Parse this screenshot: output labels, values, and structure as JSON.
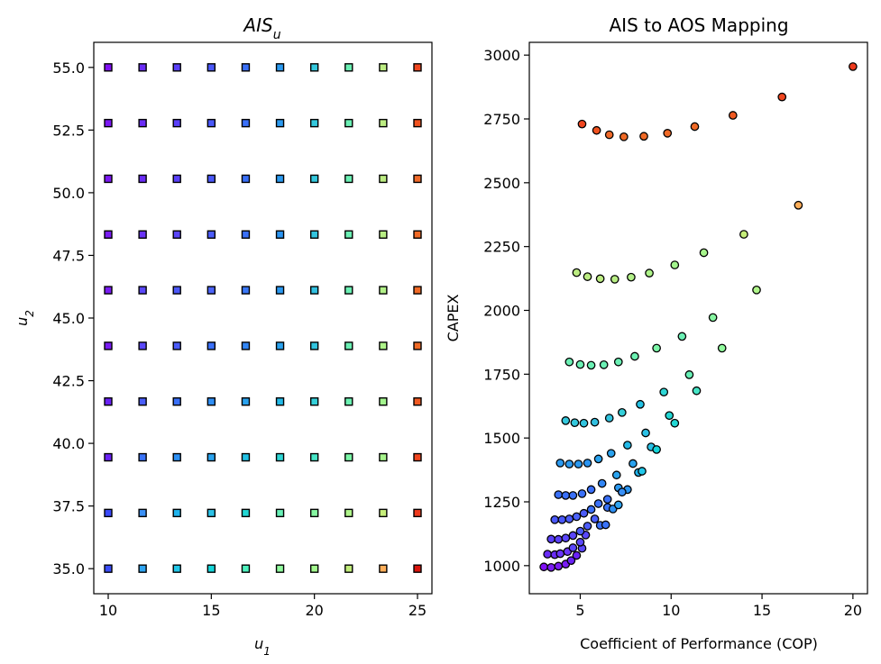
{
  "chart_data": [
    {
      "type": "scatter",
      "title": "AIS_u",
      "title_main": "AIS",
      "title_sub": "u",
      "xlabel_main": "u",
      "xlabel_sub": "1",
      "ylabel_main": "u",
      "ylabel_sub": "2",
      "xlim": [
        9.3,
        25.7
      ],
      "ylim": [
        34.0,
        56.0
      ],
      "xticks": [
        10,
        15,
        20,
        25
      ],
      "yticks": [
        35.0,
        37.5,
        40.0,
        42.5,
        45.0,
        47.5,
        50.0,
        52.5,
        55.0
      ],
      "ytick_labels": [
        "35.0",
        "37.5",
        "40.0",
        "42.5",
        "45.0",
        "47.5",
        "50.0",
        "52.5",
        "55.0"
      ],
      "marker": "square",
      "grid": false,
      "u1_values": [
        10.0,
        11.667,
        13.333,
        15.0,
        16.667,
        18.333,
        20.0,
        21.667,
        23.333,
        25.0
      ],
      "u2_values": [
        35.0,
        37.222,
        39.444,
        41.667,
        43.889,
        46.111,
        48.333,
        50.556,
        52.778,
        55.0
      ],
      "colors": [
        [
          "#3a4dfb",
          "#2fa5f3",
          "#22c7e9",
          "#15d5d9",
          "#4ef2be",
          "#90fb9d",
          "#a3f98e",
          "#c1ec7a",
          "#ffae59",
          "#d9140c"
        ],
        [
          "#3a49fb",
          "#3a90f6",
          "#1fb3ed",
          "#2bc1e6",
          "#22d6d3",
          "#67f0b6",
          "#86f5a1",
          "#aff58a",
          "#c6ee7a",
          "#ee3a1d"
        ],
        [
          "#6a22f5",
          "#3a73f8",
          "#2d90f4",
          "#2aa3ee",
          "#23c1e4",
          "#2ed6d5",
          "#46e5c6",
          "#7cf7a8",
          "#a7f48c",
          "#f0461f"
        ],
        [
          "#6a22f5",
          "#4a5efa",
          "#3a70f8",
          "#2f8ef4",
          "#2aa2ee",
          "#23b9e7",
          "#35cfd9",
          "#6cf2b2",
          "#a3f48d",
          "#f05a22"
        ],
        [
          "#7a1cf4",
          "#5a48fa",
          "#4c5cf9",
          "#3a70f8",
          "#3286f5",
          "#2aa2ee",
          "#32c4df",
          "#6bf0b4",
          "#aef489",
          "#f06a26"
        ],
        [
          "#7a1cf4",
          "#5a48fa",
          "#4c58f9",
          "#4c64f9",
          "#3a78f7",
          "#2a98f0",
          "#32c0e0",
          "#6bf0b4",
          "#b2f088",
          "#f06a26"
        ],
        [
          "#7a1cf4",
          "#6a34f7",
          "#5a46fa",
          "#4c5cf9",
          "#3a70f8",
          "#2a94f1",
          "#32c4df",
          "#6bf0b4",
          "#b8ee84",
          "#f06a26"
        ],
        [
          "#7c18f4",
          "#6a2cf6",
          "#5a40f9",
          "#4a58f9",
          "#3a70f8",
          "#2b9af0",
          "#34c8dd",
          "#6bf0b4",
          "#bcec82",
          "#f06a2a"
        ],
        [
          "#7c18f4",
          "#6a2cf6",
          "#5a40f9",
          "#4a58f9",
          "#3a70f8",
          "#2b9af0",
          "#34c8dd",
          "#6bf0b4",
          "#bcec82",
          "#f0521f"
        ],
        [
          "#8010f4",
          "#6a2cf6",
          "#5a40f9",
          "#4a58f9",
          "#3a70f8",
          "#2b9af0",
          "#34c8dd",
          "#6bf0b4",
          "#bcec82",
          "#f0461f"
        ]
      ]
    },
    {
      "type": "scatter",
      "title": "AIS to AOS Mapping",
      "xlabel": "Coefficient of Performance (COP)",
      "ylabel": "CAPEX",
      "xlim": [
        2.2,
        20.8
      ],
      "ylim": [
        890,
        3050
      ],
      "xticks": [
        5,
        10,
        15,
        20
      ],
      "yticks": [
        1000,
        1250,
        1500,
        1750,
        2000,
        2250,
        2500,
        2750,
        3000
      ],
      "marker": "circle",
      "grid": false,
      "points": [
        {
          "x": 3.0,
          "y": 995,
          "color": "#8010f4"
        },
        {
          "x": 3.4,
          "y": 993,
          "color": "#7a1cf4"
        },
        {
          "x": 3.8,
          "y": 998,
          "color": "#7a1cf4"
        },
        {
          "x": 4.2,
          "y": 1006,
          "color": "#7a1cf4"
        },
        {
          "x": 4.5,
          "y": 1020,
          "color": "#6a22f5"
        },
        {
          "x": 4.8,
          "y": 1040,
          "color": "#6a22f5"
        },
        {
          "x": 5.1,
          "y": 1068,
          "color": "#5a48fa"
        },
        {
          "x": 3.2,
          "y": 1045,
          "color": "#6a2cf6"
        },
        {
          "x": 3.6,
          "y": 1043,
          "color": "#6a2cf6"
        },
        {
          "x": 3.9,
          "y": 1047,
          "color": "#6a34f7"
        },
        {
          "x": 4.3,
          "y": 1055,
          "color": "#6a34f7"
        },
        {
          "x": 4.6,
          "y": 1070,
          "color": "#5a46fa"
        },
        {
          "x": 5.0,
          "y": 1092,
          "color": "#5a48fa"
        },
        {
          "x": 5.3,
          "y": 1120,
          "color": "#5a48fa"
        },
        {
          "x": 3.4,
          "y": 1104,
          "color": "#5a40f9"
        },
        {
          "x": 3.8,
          "y": 1103,
          "color": "#5a40f9"
        },
        {
          "x": 4.2,
          "y": 1108,
          "color": "#5a46fa"
        },
        {
          "x": 4.6,
          "y": 1118,
          "color": "#5a46fa"
        },
        {
          "x": 5.0,
          "y": 1135,
          "color": "#4c5cf9"
        },
        {
          "x": 5.4,
          "y": 1155,
          "color": "#4c5cf9"
        },
        {
          "x": 5.8,
          "y": 1183,
          "color": "#4a5efa"
        },
        {
          "x": 6.1,
          "y": 1158,
          "color": "#3a70f8"
        },
        {
          "x": 6.4,
          "y": 1160,
          "color": "#3a73f8"
        },
        {
          "x": 3.6,
          "y": 1180,
          "color": "#4a58f9"
        },
        {
          "x": 4.0,
          "y": 1180,
          "color": "#4a58f9"
        },
        {
          "x": 4.4,
          "y": 1183,
          "color": "#4c5cf9"
        },
        {
          "x": 4.8,
          "y": 1192,
          "color": "#4c64f9"
        },
        {
          "x": 5.2,
          "y": 1205,
          "color": "#4c5cf9"
        },
        {
          "x": 5.6,
          "y": 1220,
          "color": "#3a70f8"
        },
        {
          "x": 6.0,
          "y": 1243,
          "color": "#3a70f8"
        },
        {
          "x": 6.5,
          "y": 1228,
          "color": "#3a73f8"
        },
        {
          "x": 6.8,
          "y": 1222,
          "color": "#2d90f4"
        },
        {
          "x": 7.1,
          "y": 1238,
          "color": "#2fa5f3"
        },
        {
          "x": 3.8,
          "y": 1278,
          "color": "#3a70f8"
        },
        {
          "x": 4.2,
          "y": 1275,
          "color": "#3a70f8"
        },
        {
          "x": 4.6,
          "y": 1275,
          "color": "#3a70f8"
        },
        {
          "x": 5.1,
          "y": 1282,
          "color": "#3a70f8"
        },
        {
          "x": 5.6,
          "y": 1298,
          "color": "#3a70f8"
        },
        {
          "x": 6.2,
          "y": 1322,
          "color": "#3286f5"
        },
        {
          "x": 6.5,
          "y": 1260,
          "color": "#3a70f8"
        },
        {
          "x": 7.1,
          "y": 1305,
          "color": "#2a98f0"
        },
        {
          "x": 7.6,
          "y": 1298,
          "color": "#2a94f1"
        },
        {
          "x": 7.3,
          "y": 1288,
          "color": "#3a90f6"
        },
        {
          "x": 3.9,
          "y": 1402,
          "color": "#2b9af0"
        },
        {
          "x": 4.4,
          "y": 1398,
          "color": "#2b9af0"
        },
        {
          "x": 4.9,
          "y": 1398,
          "color": "#2a98f0"
        },
        {
          "x": 5.4,
          "y": 1402,
          "color": "#2a94f1"
        },
        {
          "x": 6.0,
          "y": 1418,
          "color": "#2aa2ee"
        },
        {
          "x": 6.7,
          "y": 1440,
          "color": "#2aa2ee"
        },
        {
          "x": 7.0,
          "y": 1355,
          "color": "#2aa3ee"
        },
        {
          "x": 7.6,
          "y": 1472,
          "color": "#23b9e7"
        },
        {
          "x": 7.9,
          "y": 1400,
          "color": "#2aa2ee"
        },
        {
          "x": 8.2,
          "y": 1365,
          "color": "#1fb3ed"
        },
        {
          "x": 8.4,
          "y": 1370,
          "color": "#22c7e9"
        },
        {
          "x": 4.2,
          "y": 1568,
          "color": "#34c8dd"
        },
        {
          "x": 4.7,
          "y": 1560,
          "color": "#34c8dd"
        },
        {
          "x": 5.2,
          "y": 1558,
          "color": "#32c4df"
        },
        {
          "x": 5.8,
          "y": 1562,
          "color": "#32c0e0"
        },
        {
          "x": 6.6,
          "y": 1578,
          "color": "#32c4df"
        },
        {
          "x": 7.3,
          "y": 1600,
          "color": "#35cfd9"
        },
        {
          "x": 8.3,
          "y": 1632,
          "color": "#23c1e4"
        },
        {
          "x": 8.6,
          "y": 1520,
          "color": "#2bc1e6"
        },
        {
          "x": 8.9,
          "y": 1465,
          "color": "#2bc1e6"
        },
        {
          "x": 9.2,
          "y": 1455,
          "color": "#15d5d9"
        },
        {
          "x": 9.6,
          "y": 1680,
          "color": "#2ed6d5"
        },
        {
          "x": 9.9,
          "y": 1588,
          "color": "#22d6d3"
        },
        {
          "x": 10.2,
          "y": 1558,
          "color": "#22d6d3"
        },
        {
          "x": 4.4,
          "y": 1798,
          "color": "#6bf0b4"
        },
        {
          "x": 5.0,
          "y": 1788,
          "color": "#6bf0b4"
        },
        {
          "x": 5.6,
          "y": 1785,
          "color": "#6bf0b4"
        },
        {
          "x": 6.3,
          "y": 1787,
          "color": "#6bf0b4"
        },
        {
          "x": 7.1,
          "y": 1798,
          "color": "#6bf0b4"
        },
        {
          "x": 8.0,
          "y": 1820,
          "color": "#6cf2b2"
        },
        {
          "x": 9.2,
          "y": 1852,
          "color": "#7cf7a8"
        },
        {
          "x": 10.6,
          "y": 1898,
          "color": "#6bf0b4"
        },
        {
          "x": 11.0,
          "y": 1748,
          "color": "#67f0b6"
        },
        {
          "x": 11.4,
          "y": 1685,
          "color": "#46e5c6"
        },
        {
          "x": 12.3,
          "y": 1972,
          "color": "#86f5a1"
        },
        {
          "x": 12.8,
          "y": 1852,
          "color": "#90fb9d"
        },
        {
          "x": 4.8,
          "y": 2148,
          "color": "#bcec82"
        },
        {
          "x": 5.4,
          "y": 2132,
          "color": "#bcec82"
        },
        {
          "x": 6.1,
          "y": 2124,
          "color": "#bcec82"
        },
        {
          "x": 6.9,
          "y": 2122,
          "color": "#b8ee84"
        },
        {
          "x": 7.8,
          "y": 2130,
          "color": "#b2f088"
        },
        {
          "x": 8.8,
          "y": 2146,
          "color": "#aef489"
        },
        {
          "x": 10.2,
          "y": 2178,
          "color": "#a3f48d"
        },
        {
          "x": 11.8,
          "y": 2226,
          "color": "#a7f48c"
        },
        {
          "x": 14.0,
          "y": 2298,
          "color": "#c6ee7a"
        },
        {
          "x": 14.7,
          "y": 2080,
          "color": "#aff58a"
        },
        {
          "x": 17.0,
          "y": 2412,
          "color": "#ffae59"
        },
        {
          "x": 5.1,
          "y": 2730,
          "color": "#f0461f"
        },
        {
          "x": 5.9,
          "y": 2705,
          "color": "#f0521f"
        },
        {
          "x": 6.6,
          "y": 2688,
          "color": "#f06a2a"
        },
        {
          "x": 7.4,
          "y": 2680,
          "color": "#f06a26"
        },
        {
          "x": 8.5,
          "y": 2682,
          "color": "#f06a26"
        },
        {
          "x": 9.8,
          "y": 2694,
          "color": "#f06a26"
        },
        {
          "x": 11.3,
          "y": 2720,
          "color": "#f06a26"
        },
        {
          "x": 13.4,
          "y": 2764,
          "color": "#f05a22"
        },
        {
          "x": 16.1,
          "y": 2836,
          "color": "#f0461f"
        },
        {
          "x": 20.0,
          "y": 2955,
          "color": "#ee3a1d"
        }
      ]
    }
  ]
}
